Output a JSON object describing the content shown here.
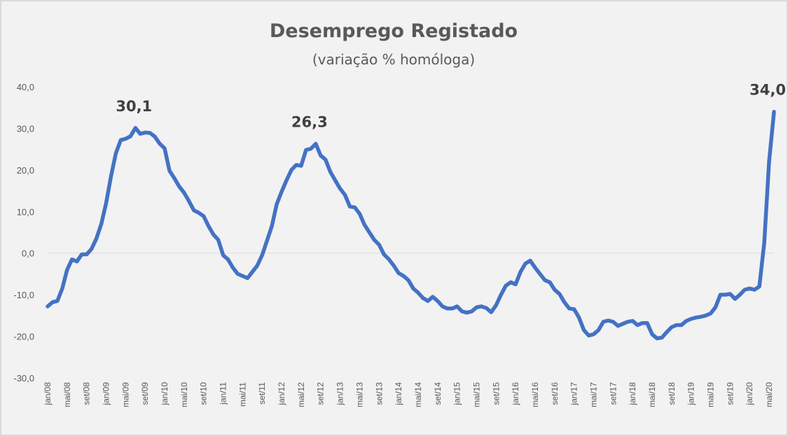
{
  "chart_data": {
    "type": "line",
    "title": "Desemprego Registado",
    "subtitle": "(variação % homóloga)",
    "xlabel": "",
    "ylabel": "",
    "ylim": [
      -30,
      40
    ],
    "yticks": [
      40,
      30,
      20,
      10,
      0,
      -10,
      -20,
      -30
    ],
    "ytick_labels": [
      "40,0",
      "30,0",
      "20,0",
      "10,0",
      "0,0",
      "-10,0",
      "-20,0",
      "-30,0"
    ],
    "xtick_labels": [
      "jan/08",
      "mai/08",
      "set/08",
      "jan/09",
      "mai/09",
      "set/09",
      "jan/10",
      "mai/10",
      "set/10",
      "jan/11",
      "mai/11",
      "set/11",
      "jan/12",
      "mai/12",
      "set/12",
      "jan/13",
      "mai/13",
      "set/13",
      "jan/14",
      "mai/14",
      "set/14",
      "jan/15",
      "mai/15",
      "set/15",
      "jan/16",
      "mai/16",
      "set/16",
      "jan/17",
      "mai/17",
      "set/17",
      "jan/18",
      "mai/18",
      "set/18",
      "jan/19",
      "mai/19",
      "set/19",
      "jan/20",
      "mai/20"
    ],
    "grid": "horizontal zero line only",
    "line_color": "#4472c4",
    "series": [
      {
        "x_start": "jan/08",
        "x_step": "1 month",
        "values": [
          -12.8,
          -11.8,
          -11.5,
          -8.5,
          -4.0,
          -1.5,
          -2.0,
          -0.3,
          -0.3,
          1.0,
          3.5,
          7.0,
          12.0,
          18.5,
          24.0,
          27.2,
          27.5,
          28.1,
          30.1,
          28.7,
          29.0,
          28.9,
          28.0,
          26.3,
          25.2,
          19.8,
          18.0,
          16.0,
          14.5,
          12.5,
          10.3,
          9.7,
          8.9,
          6.5,
          4.5,
          3.2,
          -0.5,
          -1.5,
          -3.5,
          -5.0,
          -5.5,
          -6.0,
          -4.5,
          -3.0,
          -0.5,
          3.0,
          6.5,
          11.8,
          14.8,
          17.5,
          20.0,
          21.2,
          21.0,
          24.8,
          25.1,
          26.3,
          23.5,
          22.5,
          19.5,
          17.5,
          15.5,
          14.0,
          11.2,
          11.0,
          9.5,
          6.8,
          5.0,
          3.2,
          2.0,
          -0.3,
          -1.5,
          -3.0,
          -4.8,
          -5.5,
          -6.5,
          -8.5,
          -9.5,
          -10.8,
          -11.5,
          -10.5,
          -11.5,
          -12.8,
          -13.3,
          -13.3,
          -12.8,
          -14.0,
          -14.3,
          -14.0,
          -13.0,
          -12.8,
          -13.2,
          -14.2,
          -12.5,
          -10.0,
          -7.8,
          -7.0,
          -7.5,
          -4.5,
          -2.5,
          -1.8,
          -3.5,
          -5.0,
          -6.5,
          -7.0,
          -8.8,
          -9.8,
          -11.8,
          -13.3,
          -13.5,
          -15.5,
          -18.5,
          -19.8,
          -19.5,
          -18.5,
          -16.5,
          -16.2,
          -16.5,
          -17.5,
          -17.0,
          -16.5,
          -16.3,
          -17.3,
          -16.8,
          -16.8,
          -19.5,
          -20.5,
          -20.3,
          -19.0,
          -17.8,
          -17.3,
          -17.3,
          -16.3,
          -15.8,
          -15.5,
          -15.3,
          -15.0,
          -14.5,
          -13.0,
          -10.0,
          -10.0,
          -9.8,
          -11.0,
          -10.0,
          -8.8,
          -8.5,
          -8.8,
          -8.0,
          2.5,
          22.0,
          34.0
        ]
      }
    ],
    "annotations": [
      {
        "label": "30,1",
        "x": "jul/09",
        "y": 30.1
      },
      {
        "label": "26,3",
        "x": "jul/12",
        "y": 26.3
      },
      {
        "label": "34,0",
        "x": "mai/20",
        "y": 34.0
      }
    ]
  }
}
